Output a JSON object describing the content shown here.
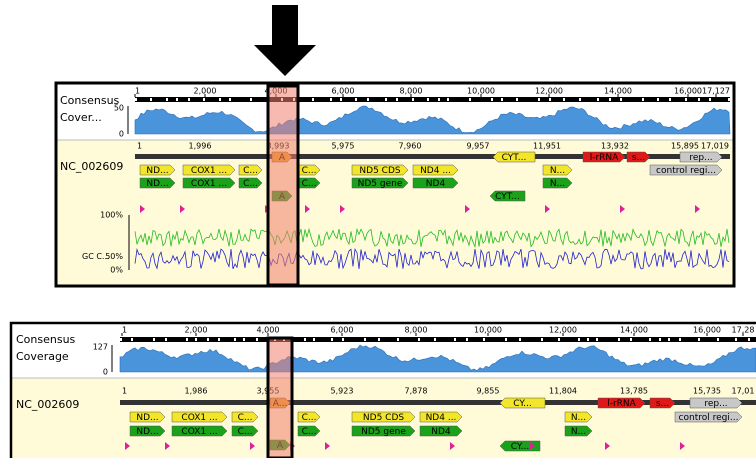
{
  "top_panel": {
    "consensus_label": "Consensus",
    "coverage_label": "Cover...",
    "coverage_ticks": [
      "50",
      "0"
    ],
    "ruler_ticks": [
      "1",
      "2,000",
      "4,000",
      "6,000",
      "8,000",
      "10,000",
      "12,000",
      "14,000",
      "16,000",
      "17,127"
    ],
    "sequence_name": "NC_002609",
    "sequence_ticks": [
      "1",
      "1,996",
      "3,993",
      "5,975",
      "7,960",
      "9,957",
      "11,951",
      "13,932",
      "15,895",
      "17,019"
    ],
    "annotations": [
      "ND...",
      "COX1 ...",
      "C...",
      "A",
      "C...",
      "ND5 CDS",
      "ND4 ...",
      "CYT...",
      "N...",
      "l-rRNA",
      "s...",
      "rep...",
      "control regi...",
      "ND...",
      "COX1 ...",
      "C...",
      "C...",
      "ND5 gene",
      "ND4",
      "N...",
      "CYT...",
      "A"
    ],
    "gc_label": "GC C...",
    "gc_ticks": [
      "100%",
      "50%",
      "0%"
    ]
  },
  "bottom_panel": {
    "consensus_label": "Consensus",
    "coverage_label": "Coverage",
    "coverage_ticks": [
      "127",
      "0"
    ],
    "ruler_ticks": [
      "1",
      "2,000",
      "4,000",
      "6,000",
      "8,000",
      "10,000",
      "12,000",
      "14,000",
      "16,000",
      "17,28"
    ],
    "sequence_name": "NC_002609",
    "sequence_ticks": [
      "1",
      "1,986",
      "3,955",
      "5,923",
      "7,878",
      "9,855",
      "11,804",
      "13,785",
      "15,735",
      "17,01"
    ],
    "annotations": [
      "ND...",
      "COX1 ...",
      "C...",
      "A...",
      "C...",
      "ND5 CDS",
      "ND4 ...",
      "CY...",
      "N...",
      "l-rRNA",
      "s...",
      "rep...",
      "control regi...",
      "ND...",
      "COX1 ...",
      "C...",
      "C...",
      "ND5 gene",
      "ND4",
      "N...",
      "CY...",
      "A"
    ]
  }
}
